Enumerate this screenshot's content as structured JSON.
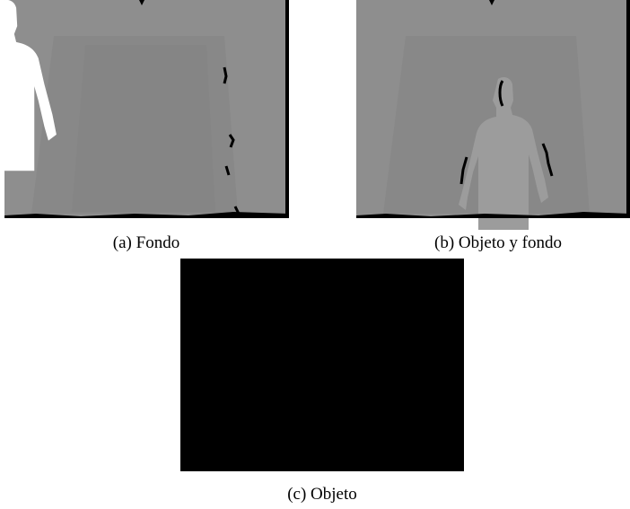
{
  "figure": {
    "subfigures": [
      {
        "caption": "(a) Fondo"
      },
      {
        "caption": "(b) Objeto y fondo"
      },
      {
        "caption": "(c) Objeto"
      }
    ]
  }
}
